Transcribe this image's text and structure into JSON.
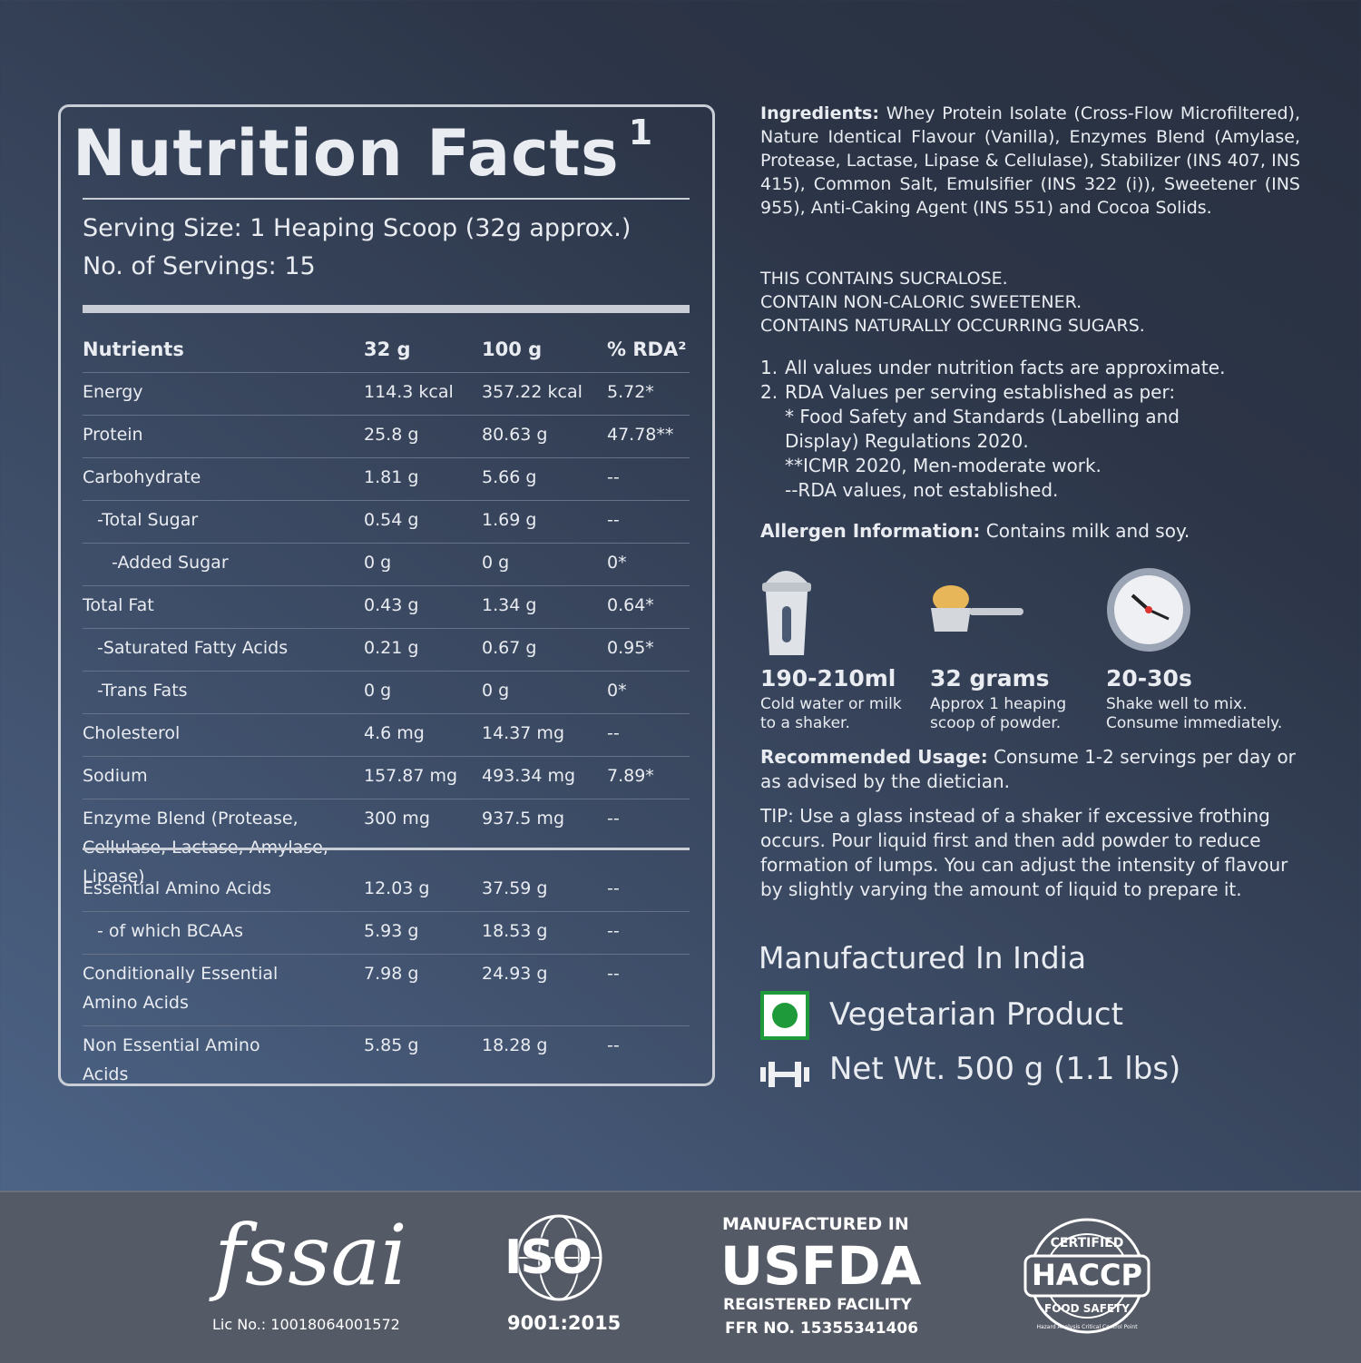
{
  "nutrition": {
    "title": "Nutrition Facts",
    "title_note": "1",
    "serving_size": "Serving Size: 1 Heaping Scoop (32g approx.)",
    "servings": "No. of Servings: 15",
    "columns": [
      "Nutrients",
      "32 g",
      "100 g",
      "% RDA²"
    ],
    "rows": [
      [
        "Energy",
        "114.3 kcal",
        "357.22 kcal",
        "5.72*"
      ],
      [
        "Protein",
        "25.8 g",
        "80.63 g",
        "47.78**"
      ],
      [
        "Carbohydrate",
        "1.81 g",
        "5.66 g",
        "--"
      ],
      [
        "-Total Sugar",
        "0.54 g",
        "1.69 g",
        "--"
      ],
      [
        "-Added Sugar",
        "0 g",
        "0 g",
        "0*"
      ],
      [
        "Total Fat",
        "0.43 g",
        "1.34 g",
        "0.64*"
      ],
      [
        "-Saturated Fatty Acids",
        "0.21 g",
        "0.67 g",
        "0.95*"
      ],
      [
        "-Trans Fats",
        "0 g",
        "0 g",
        "0*"
      ],
      [
        "Cholesterol",
        "4.6 mg",
        "14.37 mg",
        "--"
      ],
      [
        "Sodium",
        "157.87 mg",
        "493.34 mg",
        "7.89*"
      ],
      [
        "Enzyme Blend (Protease, Cellulase, Lactase, Amylase, Lipase)",
        "300 mg",
        "937.5 mg",
        "--"
      ]
    ],
    "amino_rows": [
      [
        "Essential Amino Acids",
        "12.03 g",
        "37.59 g",
        "--"
      ],
      [
        "- of which BCAAs",
        "5.93 g",
        "18.53 g",
        "--"
      ],
      [
        "Conditionally Essential Amino Acids",
        "7.98 g",
        "24.93 g",
        "--"
      ],
      [
        "Non Essential Amino Acids",
        "5.85 g",
        "18.28 g",
        "--"
      ]
    ]
  },
  "info": {
    "ingredients_label": "Ingredients:",
    "ingredients": "Whey Protein Isolate (Cross-Flow Microfiltered), Nature Identical Flavour (Vanilla), Enzymes Blend (Amylase, Protease, Lactase, Lipase & Cellulase), Stabilizer (INS 407, INS 415), Common Salt, Emulsifier (INS 322 (i)), Sweetener (INS 955), Anti-Caking Agent (INS 551) and Cocoa Solids.",
    "warnings": [
      "THIS CONTAINS SUCRALOSE.",
      "CONTAIN NON-CALORIC SWEETENER.",
      "CONTAINS NATURALLY OCCURRING SUGARS."
    ],
    "notes": [
      {
        "number": "1.",
        "text": "All values under nutrition facts  are approximate."
      },
      {
        "number": "2.",
        "text": "RDA Values per serving established as per:"
      }
    ],
    "note_refs": [
      "* Food Safety and Standards (Labelling and Display) Regulations 2020.",
      "**ICMR 2020, Men-moderate work.",
      "--RDA values, not established."
    ],
    "allergen_label": "Allergen Information:",
    "allergen": "Contains milk and soy.",
    "usage": [
      {
        "value": "190-210ml",
        "text": "Cold water or milk to a shaker."
      },
      {
        "value": "32 grams",
        "text": "Approx 1 heaping scoop of powder."
      },
      {
        "value": "20-30s",
        "text": "Shake well to mix. Consume immediately."
      }
    ],
    "recommended_label": "Recommended Usage:",
    "recommended": "Consume 1-2 servings per day or as advised by the dietician.",
    "tip": "TIP: Use a glass instead of a shaker if excessive frothing occurs. Pour liquid first and then add powder to reduce formation of lumps. You can adjust the intensity of flavour by slightly varying the amount of liquid to prepare it.",
    "manufactured": "Manufactured In India",
    "vegetarian": "Vegetarian Product",
    "net_wt": "Net Wt. 500 g (1.1 lbs)"
  },
  "footer": {
    "fssai": "fssai",
    "fssai_lic": "Lic No.: 10018064001572",
    "iso": "ISO",
    "iso_number": "9001:2015",
    "usfda_top": "MANUFACTURED IN",
    "usfda": "USFDA",
    "usfda_sub": "REGISTERED FACILITY",
    "usfda_ffr": "FFR NO. 15355341406",
    "haccp_top": "CERTIFIED",
    "haccp": "HACCP",
    "haccp_bottom": "FOOD SAFETY",
    "haccp_ring": "Hazard Analysis Critical Control Point"
  }
}
